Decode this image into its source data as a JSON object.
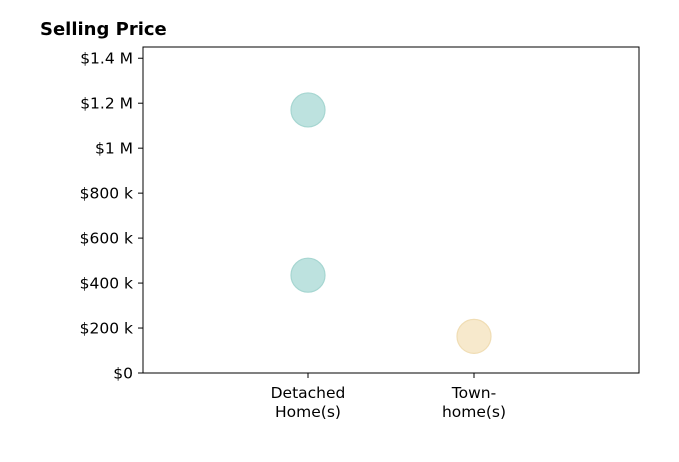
{
  "chart_data": {
    "type": "scatter",
    "title": "Selling Price",
    "xlabel": "",
    "ylabel": "",
    "categories": [
      [
        "Detached",
        "Home(s)"
      ],
      [
        "Town-",
        "home(s)"
      ]
    ],
    "ylim": [
      0,
      1450000
    ],
    "yticks": [
      {
        "value": 0,
        "label": "$0"
      },
      {
        "value": 200000,
        "label": "$200 k"
      },
      {
        "value": 400000,
        "label": "$400 k"
      },
      {
        "value": 600000,
        "label": "$600 k"
      },
      {
        "value": 800000,
        "label": "$800 k"
      },
      {
        "value": 1000000,
        "label": "$1 M"
      },
      {
        "value": 1200000,
        "label": "$1.2 M"
      },
      {
        "value": 1400000,
        "label": "$1.4 M"
      }
    ],
    "points": [
      {
        "category": 0,
        "y": 1170000,
        "color": "#bde2df",
        "stroke": "#a6d6d1"
      },
      {
        "category": 0,
        "y": 435000,
        "color": "#bde2df",
        "stroke": "#a6d6d1"
      },
      {
        "category": 1,
        "y": 163000,
        "color": "#f7e9cc",
        "stroke": "#f0ddb4"
      }
    ],
    "grid": false,
    "legend": "none"
  }
}
